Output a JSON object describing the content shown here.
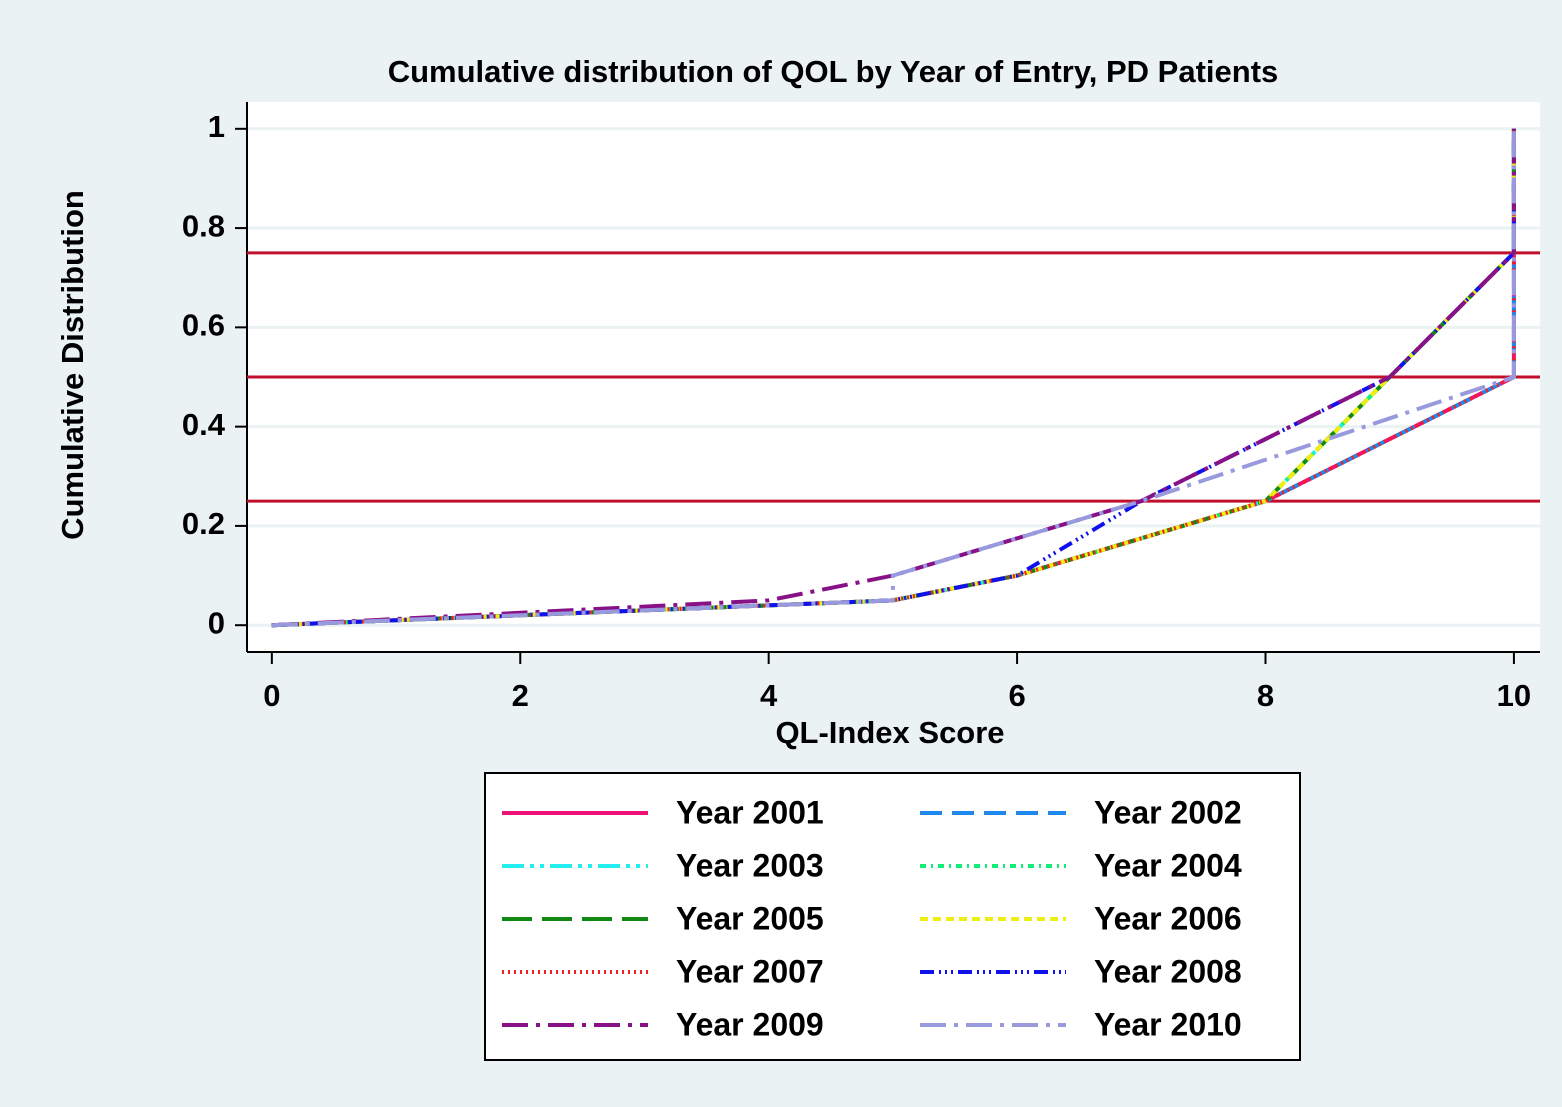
{
  "chart_data": {
    "type": "line",
    "title": "Cumulative distribution of QOL by Year of Entry, PD Patients",
    "xlabel": "QL-Index Score",
    "ylabel": "Cumulative Distribution",
    "xlim": [
      -0.2,
      10.21
    ],
    "ylim": [
      -0.054,
      1.054
    ],
    "xticks": [
      0,
      2,
      4,
      6,
      8,
      10
    ],
    "yticks": [
      0,
      0.2,
      0.4,
      0.6,
      0.8,
      1
    ],
    "grid": true,
    "hlines": [
      0.25,
      0.5,
      0.75
    ],
    "hline_color": "#c0102e",
    "series": [
      {
        "name": "Year 2001",
        "color": "#ee1177",
        "dash": "none",
        "x": [
          0,
          5,
          6,
          8,
          10,
          10
        ],
        "values": [
          0,
          0.05,
          0.1,
          0.25,
          0.5,
          1
        ]
      },
      {
        "name": "Year 2002",
        "color": "#1e88ee",
        "dash": "22 10",
        "x": [
          0,
          5,
          6,
          8,
          10,
          10
        ],
        "values": [
          0,
          0.05,
          0.1,
          0.25,
          0.5,
          1
        ]
      },
      {
        "name": "Year 2003",
        "color": "#22eeee",
        "dash": "22 6 4 6 4 6",
        "x": [
          0,
          5,
          6,
          8,
          9,
          10,
          10
        ],
        "values": [
          0,
          0.05,
          0.1,
          0.25,
          0.5,
          0.75,
          1
        ]
      },
      {
        "name": "Year 2004",
        "color": "#11ee77",
        "dash": "6 5 2 5",
        "x": [
          0,
          5,
          6,
          8,
          9,
          10,
          10
        ],
        "values": [
          0,
          0.05,
          0.1,
          0.25,
          0.5,
          0.75,
          1
        ]
      },
      {
        "name": "Year 2005",
        "color": "#118811",
        "dash": "30 10",
        "x": [
          0,
          5,
          6,
          8,
          9,
          10,
          10
        ],
        "values": [
          0,
          0.05,
          0.1,
          0.25,
          0.5,
          0.75,
          1
        ]
      },
      {
        "name": "Year 2006",
        "color": "#eeee11",
        "dash": "8 5",
        "x": [
          0,
          5,
          6,
          8,
          9,
          10,
          10
        ],
        "values": [
          0,
          0.05,
          0.1,
          0.25,
          0.5,
          0.75,
          1
        ]
      },
      {
        "name": "Year 2007",
        "color": "#ee2222",
        "dash": "2 4",
        "x": [
          0,
          5,
          6,
          8,
          10,
          10
        ],
        "values": [
          0,
          0.05,
          0.1,
          0.25,
          0.5,
          1
        ]
      },
      {
        "name": "Year 2008",
        "color": "#1111ee",
        "dash": "14 5 2 4 2 4 2 5",
        "x": [
          0,
          5,
          6,
          7,
          8,
          9,
          10,
          10
        ],
        "values": [
          0,
          0.05,
          0.1,
          0.25,
          0.375,
          0.5,
          0.75,
          1
        ]
      },
      {
        "name": "Year 2009",
        "color": "#881188",
        "dash": "26 8 4 8",
        "x": [
          0,
          4,
          5,
          7,
          8,
          9,
          10,
          10
        ],
        "values": [
          0,
          0.05,
          0.1,
          0.25,
          0.375,
          0.5,
          0.75,
          1
        ]
      },
      {
        "name": "Year 2010",
        "color": "#9999dd",
        "dash": "26 8 4 8",
        "x": [
          0,
          5,
          5,
          7,
          10,
          10
        ],
        "values": [
          0,
          0.05,
          0.1,
          0.25,
          0.5,
          1
        ]
      }
    ]
  }
}
